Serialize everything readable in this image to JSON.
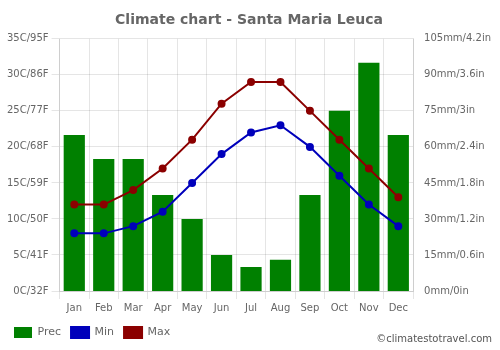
{
  "chart_data": {
    "type": "bar",
    "title": "Climate chart - Santa Maria Leuca",
    "categories": [
      "Jan",
      "Feb",
      "Mar",
      "Apr",
      "May",
      "Jun",
      "Jul",
      "Aug",
      "Sep",
      "Oct",
      "Nov",
      "Dec"
    ],
    "series": [
      {
        "name": "Prec",
        "type": "bar",
        "axis": "y2",
        "color": "#008000",
        "values": [
          65,
          55,
          55,
          40,
          30,
          15,
          10,
          13,
          40,
          75,
          95,
          65
        ]
      },
      {
        "name": "Min",
        "type": "line",
        "color": "#0000BB",
        "marker": "circle",
        "line_style": "solid",
        "values": [
          8,
          8,
          9,
          11,
          15,
          19,
          22,
          23,
          20,
          16,
          12,
          9
        ]
      },
      {
        "name": "Max",
        "type": "line",
        "color": "#8B0000",
        "marker": "circle",
        "line_style": "solid",
        "values": [
          12,
          12,
          14,
          17,
          21,
          26,
          29,
          29,
          25,
          21,
          17,
          13
        ]
      }
    ],
    "ylim": [
      0,
      35
    ],
    "yticks": [
      {
        "value": 0,
        "label": "0C/32F"
      },
      {
        "value": 5,
        "label": "5C/41F"
      },
      {
        "value": 10,
        "label": "10C/50F"
      },
      {
        "value": 15,
        "label": "15C/59F"
      },
      {
        "value": 20,
        "label": "20C/68F"
      },
      {
        "value": 25,
        "label": "25C/77F"
      },
      {
        "value": 30,
        "label": "30C/86F"
      },
      {
        "value": 35,
        "label": "35C/95F"
      }
    ],
    "y2lim": [
      0,
      105
    ],
    "y2ticks": [
      {
        "value": 0,
        "label": "0mm/0in"
      },
      {
        "value": 15,
        "label": "15mm/0.6in"
      },
      {
        "value": 30,
        "label": "30mm/1.2in"
      },
      {
        "value": 45,
        "label": "45mm/1.8in"
      },
      {
        "value": 60,
        "label": "60mm/2.4in"
      },
      {
        "value": 75,
        "label": "75mm/3in"
      },
      {
        "value": 90,
        "label": "90mm/3.6in"
      },
      {
        "value": 105,
        "label": "105mm/4.2in"
      }
    ],
    "grid": true,
    "legend": "lower left",
    "annotations": [
      "©climatestotravel.com"
    ]
  }
}
